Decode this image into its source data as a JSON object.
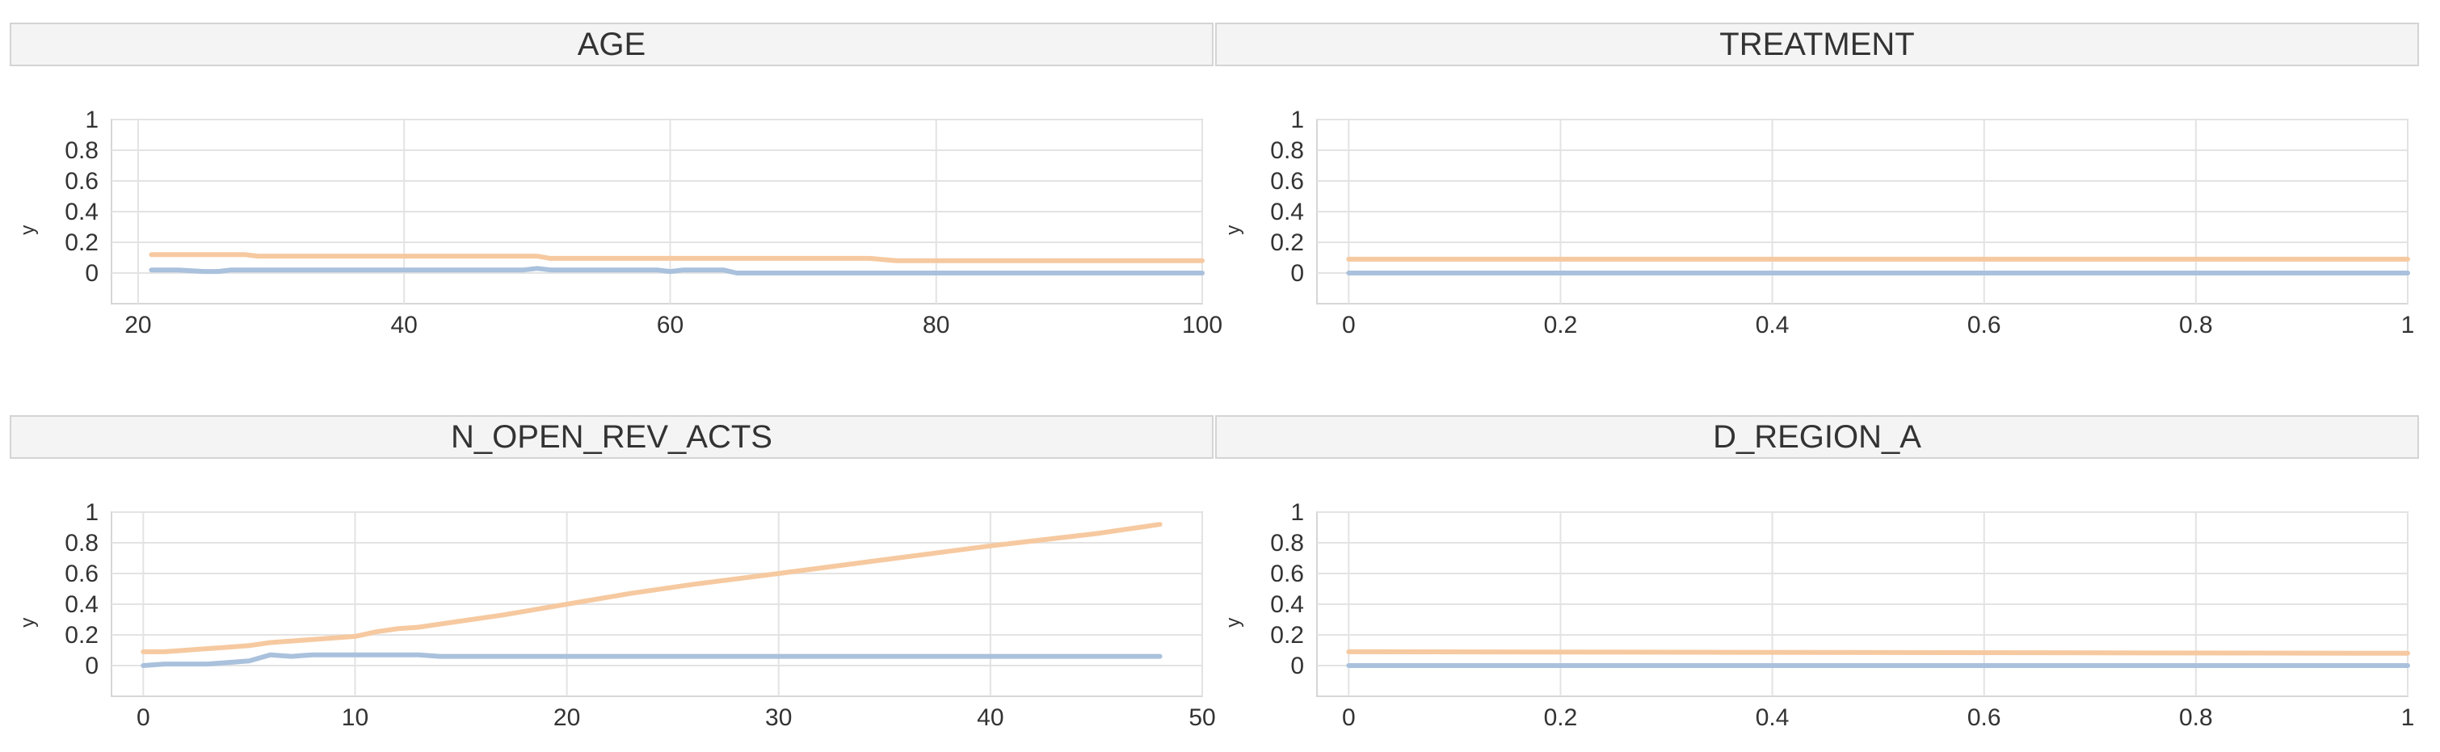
{
  "chart_data": [
    {
      "type": "line",
      "title": "AGE",
      "xlabel": "",
      "ylabel": "y",
      "xlim": [
        18,
        100
      ],
      "ylim": [
        -0.2,
        1
      ],
      "x_ticks": [
        "20",
        "40",
        "60",
        "80",
        "100"
      ],
      "y_ticks": [
        "1",
        "0.8",
        "0.6",
        "0.4",
        "0.2",
        "0"
      ],
      "grid": true,
      "series": [
        {
          "color": "#f6c9a0",
          "x": [
            21,
            27,
            28,
            29,
            49,
            50,
            51,
            75,
            77,
            100
          ],
          "y": [
            0.12,
            0.12,
            0.12,
            0.11,
            0.11,
            0.11,
            0.095,
            0.095,
            0.08,
            0.08
          ]
        },
        {
          "color": "#a9c1dc",
          "x": [
            21,
            23,
            25,
            26,
            27,
            49,
            50,
            51,
            52,
            59,
            60,
            61,
            64,
            65,
            100
          ],
          "y": [
            0.02,
            0.02,
            0.01,
            0.01,
            0.02,
            0.02,
            0.03,
            0.02,
            0.02,
            0.02,
            0.01,
            0.02,
            0.02,
            0.0,
            0.0
          ]
        }
      ]
    },
    {
      "type": "line",
      "title": "TREATMENT",
      "xlabel": "",
      "ylabel": "y",
      "xlim": [
        -0.03,
        1
      ],
      "ylim": [
        -0.2,
        1
      ],
      "x_ticks": [
        "0",
        "0.2",
        "0.4",
        "0.6",
        "0.8",
        "1"
      ],
      "y_ticks": [
        "1",
        "0.8",
        "0.6",
        "0.4",
        "0.2",
        "0"
      ],
      "grid": true,
      "series": [
        {
          "color": "#f6c9a0",
          "x": [
            0,
            1
          ],
          "y": [
            0.09,
            0.09
          ]
        },
        {
          "color": "#a9c1dc",
          "x": [
            0,
            1
          ],
          "y": [
            0.0,
            0.0
          ]
        }
      ]
    },
    {
      "type": "line",
      "title": "N_OPEN_REV_ACTS",
      "xlabel": "",
      "ylabel": "y",
      "xlim": [
        -1.5,
        50
      ],
      "ylim": [
        -0.2,
        1
      ],
      "x_ticks": [
        "0",
        "10",
        "20",
        "30",
        "40",
        "50"
      ],
      "y_ticks": [
        "1",
        "0.8",
        "0.6",
        "0.4",
        "0.2",
        "0"
      ],
      "grid": true,
      "series": [
        {
          "color": "#f6c9a0",
          "x": [
            0,
            1,
            2,
            3,
            4,
            5,
            6,
            7,
            8,
            9,
            10,
            11,
            12,
            13,
            14,
            15,
            17,
            20,
            23,
            26,
            30,
            35,
            40,
            45,
            48
          ],
          "y": [
            0.09,
            0.09,
            0.1,
            0.11,
            0.12,
            0.13,
            0.15,
            0.16,
            0.17,
            0.18,
            0.19,
            0.22,
            0.24,
            0.25,
            0.27,
            0.29,
            0.33,
            0.4,
            0.47,
            0.53,
            0.6,
            0.69,
            0.78,
            0.86,
            0.92
          ]
        },
        {
          "color": "#a9c1dc",
          "x": [
            0,
            1,
            2,
            3,
            4,
            5,
            6,
            7,
            8,
            9,
            10,
            11,
            12,
            13,
            14,
            15,
            20,
            30,
            40,
            48
          ],
          "y": [
            0.0,
            0.01,
            0.01,
            0.01,
            0.02,
            0.03,
            0.07,
            0.06,
            0.07,
            0.07,
            0.07,
            0.07,
            0.07,
            0.07,
            0.06,
            0.06,
            0.06,
            0.06,
            0.06,
            0.06
          ]
        }
      ]
    },
    {
      "type": "line",
      "title": "D_REGION_A",
      "xlabel": "",
      "ylabel": "y",
      "xlim": [
        -0.03,
        1
      ],
      "ylim": [
        -0.2,
        1
      ],
      "x_ticks": [
        "0",
        "0.2",
        "0.4",
        "0.6",
        "0.8",
        "1"
      ],
      "y_ticks": [
        "1",
        "0.8",
        "0.6",
        "0.4",
        "0.2",
        "0"
      ],
      "grid": true,
      "series": [
        {
          "color": "#f6c9a0",
          "x": [
            0,
            1
          ],
          "y": [
            0.09,
            0.08
          ]
        },
        {
          "color": "#a9c1dc",
          "x": [
            0,
            1
          ],
          "y": [
            0.0,
            0.0
          ]
        }
      ]
    }
  ]
}
